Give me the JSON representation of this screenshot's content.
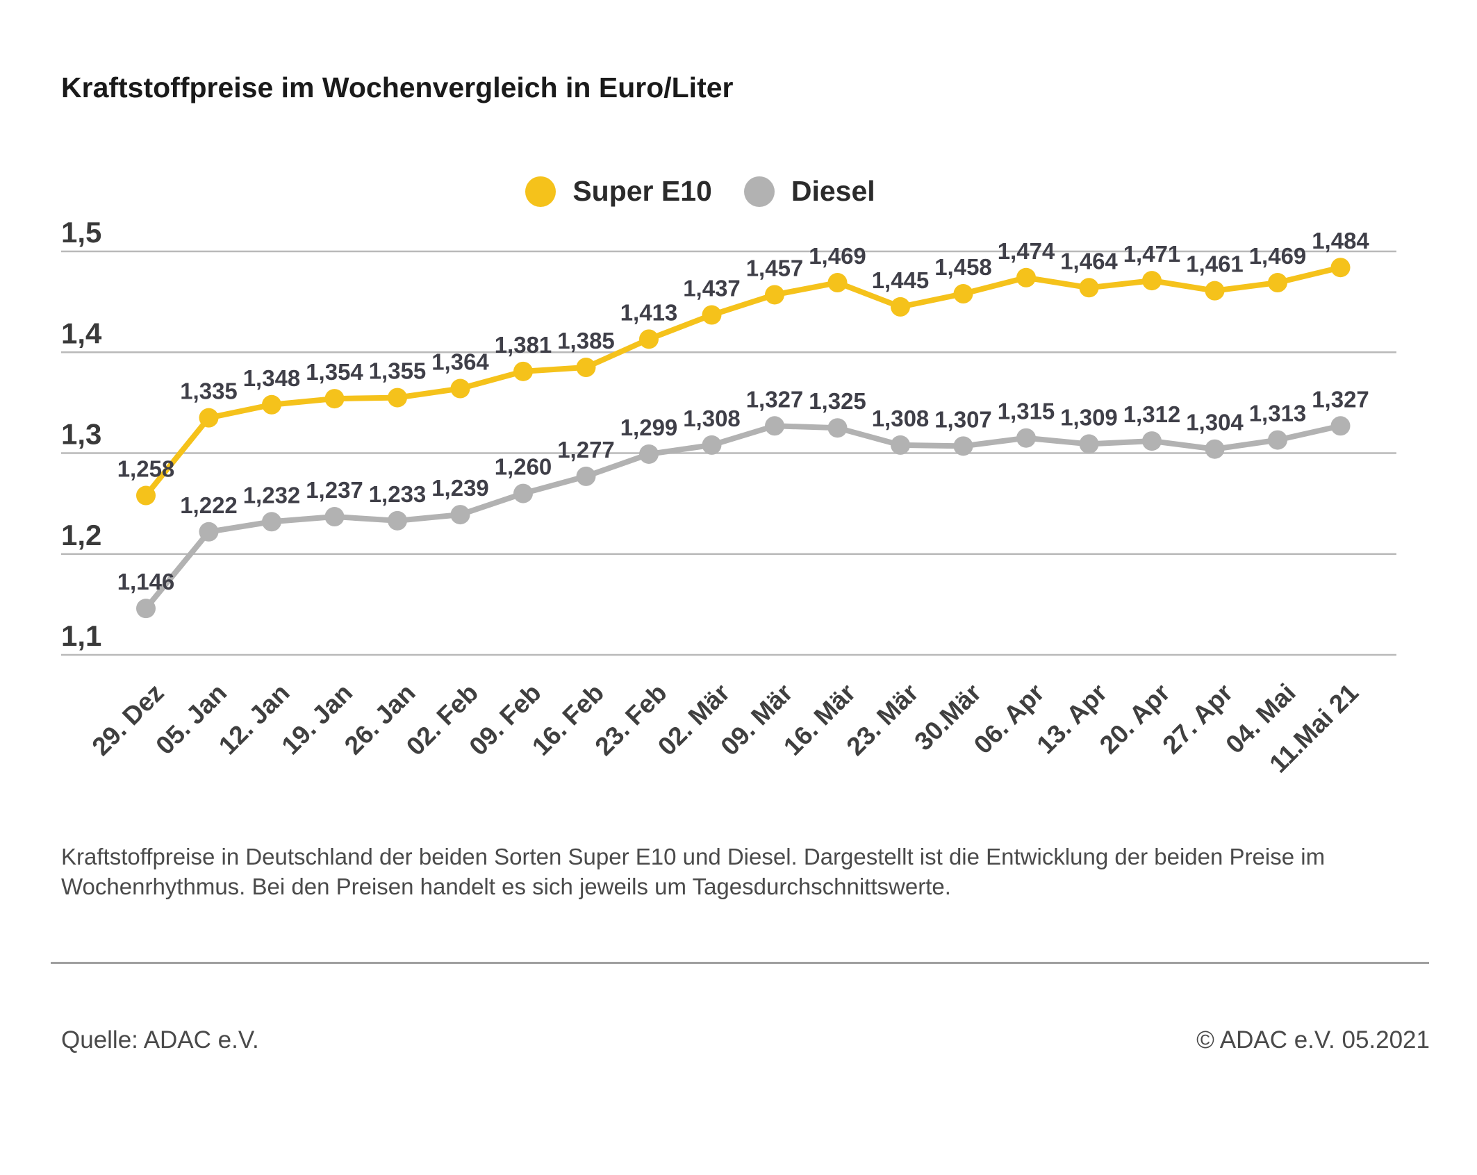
{
  "page": {
    "title": "Kraftstoffpreise im Wochenvergleich in Euro/Liter",
    "description_line1": "Kraftstoffpreise in Deutschland der beiden Sorten Super E10 und Diesel. Dargestellt ist die Entwicklung der beiden Preise im",
    "description_line2": "Wochenrhythmus. Bei den Preisen handelt es sich jeweils um Tagesdurchschnittswerte.",
    "source_label": "Quelle: ADAC e.V.",
    "copyright_label": "© ADAC e.V. 05.2021"
  },
  "chart_data": {
    "type": "line",
    "title": "Kraftstoffpreise im Wochenvergleich in Euro/Liter",
    "unit": "Euro/Liter",
    "categories": [
      "29. Dez",
      "05. Jan",
      "12. Jan",
      "19. Jan",
      "26. Jan",
      "02. Feb",
      "09. Feb",
      "16. Feb",
      "23. Feb",
      "02. Mär",
      "09. Mär",
      "16. Mär",
      "23. Mär",
      "30.Mär",
      "06. Apr",
      "13. Apr",
      "20. Apr",
      "27. Apr",
      "04. Mai",
      "11.Mai 21"
    ],
    "series": [
      {
        "name": "Super E10",
        "color": "#f5c21b",
        "values": [
          1.258,
          1.335,
          1.348,
          1.354,
          1.355,
          1.364,
          1.381,
          1.385,
          1.413,
          1.437,
          1.457,
          1.469,
          1.445,
          1.458,
          1.474,
          1.464,
          1.471,
          1.461,
          1.469,
          1.484
        ]
      },
      {
        "name": "Diesel",
        "color": "#b2b2b2",
        "values": [
          1.146,
          1.222,
          1.232,
          1.237,
          1.233,
          1.239,
          1.26,
          1.277,
          1.299,
          1.308,
          1.327,
          1.325,
          1.308,
          1.307,
          1.315,
          1.309,
          1.312,
          1.304,
          1.313,
          1.327
        ]
      }
    ],
    "y_ticks": [
      1.1,
      1.2,
      1.3,
      1.4,
      1.5
    ],
    "y_tick_labels": [
      "1,1",
      "1,2",
      "1,3",
      "1,4",
      "1,5"
    ],
    "ylim": [
      1.1,
      1.5
    ],
    "grid": true,
    "legend_position": "top-center",
    "decimal_separator": ",",
    "point_label_color": "#3f3f48",
    "axis_label_color": "#3a3a3a",
    "gridline_color": "#b9b9b9"
  }
}
